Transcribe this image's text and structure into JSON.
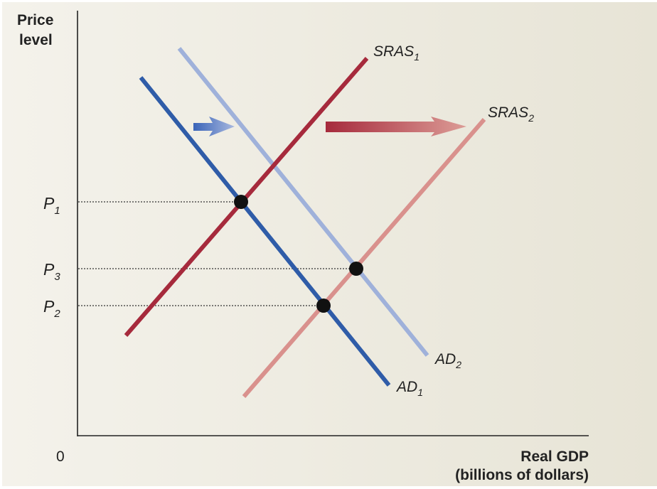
{
  "axes": {
    "y_label_line1": "Price",
    "y_label_line2": "level",
    "x_label_line1": "Real GDP",
    "x_label_line2": "(billions of dollars)",
    "origin": "0"
  },
  "price_levels": [
    {
      "letter": "P",
      "sub": "1"
    },
    {
      "letter": "P",
      "sub": "3"
    },
    {
      "letter": "P",
      "sub": "2"
    }
  ],
  "curves": [
    {
      "name": "AD",
      "sub": "1",
      "color": "#2f5ca8"
    },
    {
      "name": "AD",
      "sub": "2",
      "color": "#9fb1da"
    },
    {
      "name": "SRAS",
      "sub": "1",
      "color": "#a62a3c"
    },
    {
      "name": "SRAS",
      "sub": "2",
      "color": "#d9918d"
    }
  ],
  "shift_arrows": [
    {
      "curve": "AD",
      "direction": "right",
      "color": "#4a72c0"
    },
    {
      "curve": "SRAS",
      "direction": "right",
      "color": "#b03a45"
    }
  ],
  "background": "#eeebe1"
}
